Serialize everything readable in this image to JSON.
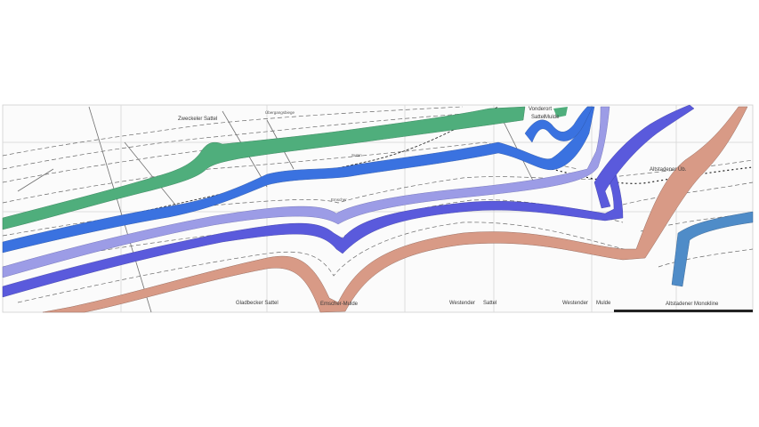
{
  "labels": {
    "zweckel_sattel": "Zweckeler Sattel",
    "vonderort_sattel": "Vonderort",
    "vonderort_sattel_2": "Sattel",
    "mulde_top": "Mulde",
    "gladbecker_sattel": "Gladbecker Sattel",
    "emscher_mulde": "Emscher-Mulde",
    "westender": "Westender",
    "sattel_bottom": "Sattel",
    "westender_2": "Westender",
    "mulde_bottom": "Mulde",
    "altstadener_monokline": "Altstadener Monokline",
    "altstadener_fault": "Altstadener Üb.",
    "sutan": "Sutan",
    "emscher_small": "Emscher",
    "top_strip": "Übergangsbiege"
  },
  "colors": {
    "green_layer": "#4fae7c",
    "blue_layer": "#3a72e0",
    "light_violet_layer": "#9c9ce6",
    "violet_layer": "#5a5adc",
    "salmon_layer": "#d89a86",
    "steel_blue_layer": "#4f8cc8",
    "line": "#555555",
    "grid": "#d8d8d8"
  }
}
